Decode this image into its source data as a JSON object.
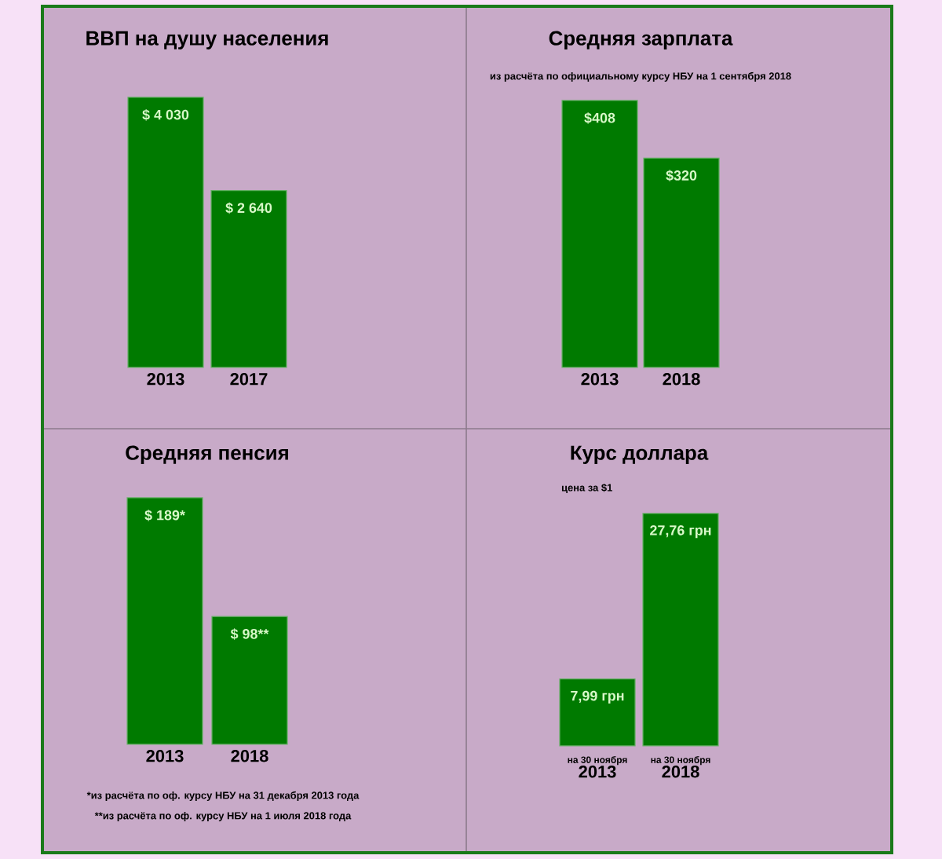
{
  "chart_data": [
    {
      "type": "bar",
      "title": "ВВП на душу населения",
      "categories": [
        "2013",
        "2017"
      ],
      "values": [
        4030,
        2640
      ],
      "value_labels": [
        "$ 4 030",
        "$ 2 640"
      ],
      "color": "#007a00",
      "tick_labels": "x"
    },
    {
      "type": "bar",
      "title": "Средняя зарплата",
      "subtitle": "из расчёта по официальному курсу НБУ на 1 сентября 2018",
      "categories": [
        "2013",
        "2018"
      ],
      "values": [
        408,
        320
      ],
      "value_labels": [
        "$408",
        "$320"
      ],
      "color": "#007a00",
      "tick_labels": "x"
    },
    {
      "type": "bar",
      "title": "Средняя пенсия",
      "categories": [
        "2013",
        "2018"
      ],
      "values": [
        189,
        98
      ],
      "value_labels": [
        "$ 189*",
        "$ 98**"
      ],
      "color": "#007a00",
      "tick_labels": "x",
      "annotations": [
        "*из расчёта по оф. курсу НБУ на 31 декабря 2013 года",
        "**из расчёта по оф. курсу НБУ на 1 июля 2018 года"
      ]
    },
    {
      "type": "bar",
      "title": "Курс доллара",
      "subtitle": "цена за $1",
      "categories": [
        "2013",
        "2018"
      ],
      "values": [
        7.99,
        27.76
      ],
      "value_labels": [
        "7,99 грн",
        "27,76 грн"
      ],
      "color": "#007a00",
      "tick_labels": "x",
      "annotations": [
        {
          "text": "на 30 ноября",
          "x": "2013",
          "y": 0
        },
        {
          "text": "на 30 ноября",
          "x": "2018",
          "y": 0
        }
      ]
    }
  ]
}
